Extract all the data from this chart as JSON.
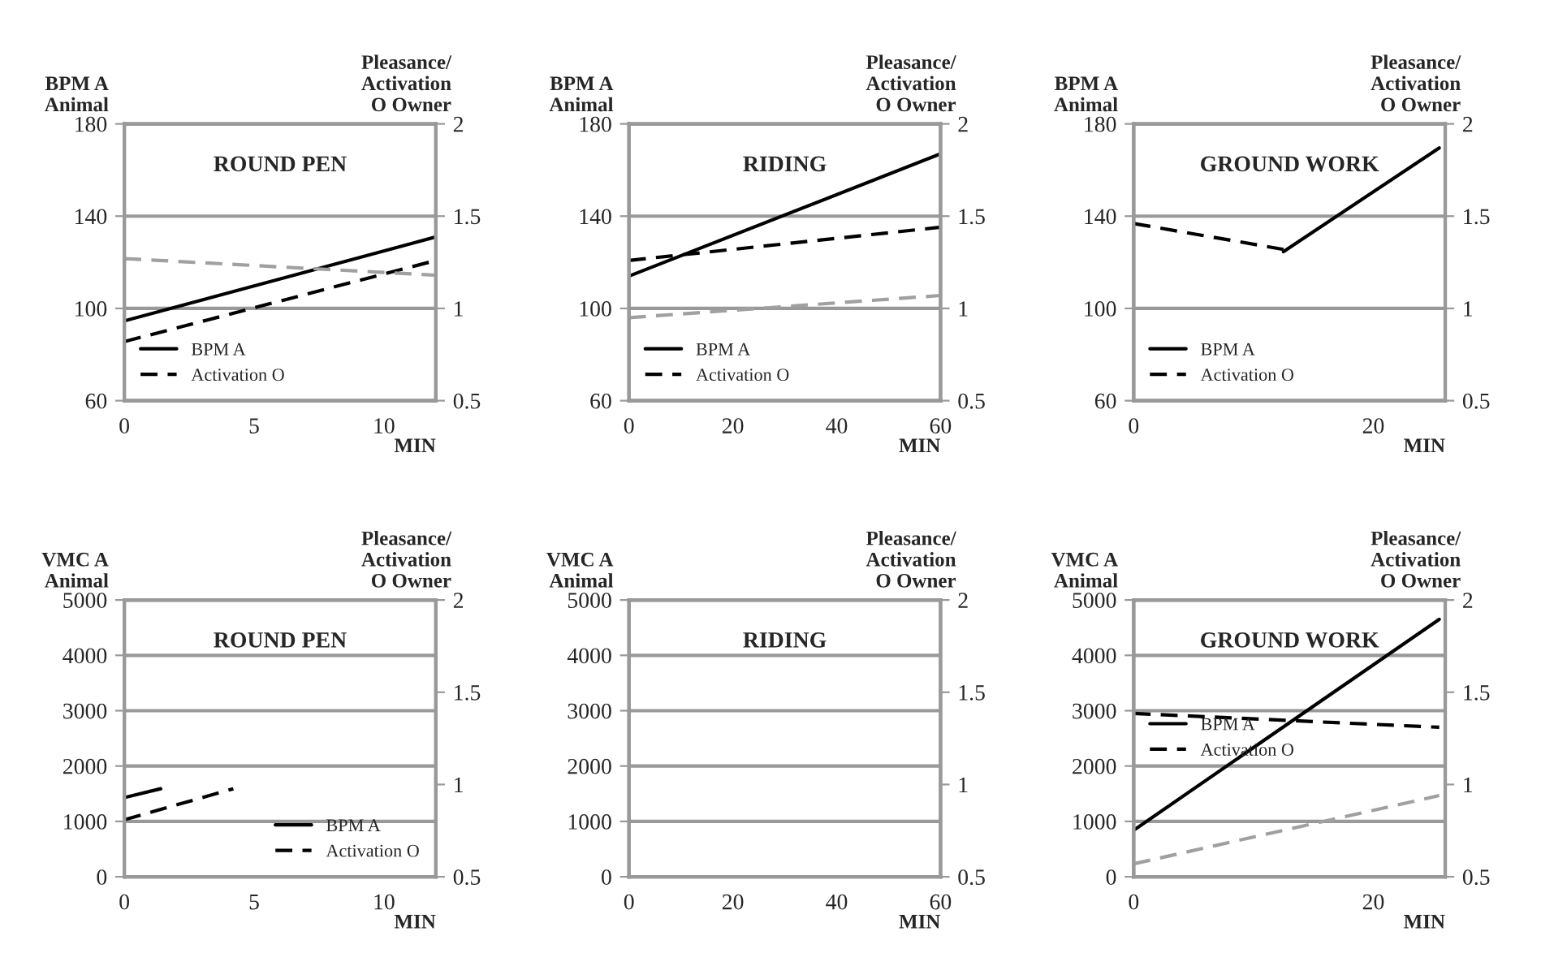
{
  "chart_data": [
    {
      "type": "line",
      "title": "ROUND PEN",
      "xlabel": "MIN",
      "ylabel": "BPM A\nAnimal",
      "y2label": "Pleasance/\nActivation\nO Owner",
      "xlim": [
        0,
        12
      ],
      "xticks": [
        0,
        5,
        10
      ],
      "ylim": [
        60,
        180
      ],
      "yticks": [
        60,
        100,
        140,
        180
      ],
      "y2lim": [
        0.5,
        2
      ],
      "y2ticks": [
        0.5,
        1,
        1.5,
        2
      ],
      "grid": "y",
      "legend": "bottom left",
      "series": [
        {
          "name": "BPM A",
          "color": "#000000",
          "line_style": "solid",
          "x": [
            0,
            12
          ],
          "values": [
            94.6,
            131
          ]
        },
        {
          "name": "Activation O",
          "color": "#000000",
          "line_style": "dashed",
          "axis": "y2",
          "x": [
            0,
            12
          ],
          "values": [
            0.82,
            1.26
          ]
        },
        {
          "color": "#a0a0a0",
          "line_style": "dashed",
          "axis": "y2",
          "x": [
            0,
            12
          ],
          "values": [
            1.27,
            1.18
          ]
        }
      ]
    },
    {
      "type": "line",
      "title": "RIDING",
      "xlabel": "MIN",
      "ylabel": "BPM A\nAnimal",
      "y2label": "Pleasance/\nActivation\nO Owner",
      "xlim": [
        0,
        60
      ],
      "xticks": [
        0,
        20,
        40,
        60
      ],
      "ylim": [
        60,
        180
      ],
      "yticks": [
        60,
        100,
        140,
        180
      ],
      "y2lim": [
        0.5,
        2
      ],
      "y2ticks": [
        0.5,
        1,
        1.5,
        2
      ],
      "grid": "y",
      "legend": "bottom left",
      "series": [
        {
          "name": "BPM A",
          "color": "#000000",
          "line_style": "solid",
          "x": [
            0,
            60
          ],
          "values": [
            114,
            167
          ]
        },
        {
          "name": "Activation O",
          "color": "#000000",
          "line_style": "dashed",
          "axis": "y2",
          "x": [
            0,
            60
          ],
          "values": [
            1.26,
            1.44
          ]
        },
        {
          "color": "#a0a0a0",
          "line_style": "dashed",
          "axis": "y2",
          "x": [
            0,
            60
          ],
          "values": [
            0.95,
            1.07
          ]
        }
      ]
    },
    {
      "type": "line",
      "title": "GROUND WORK",
      "xlabel": "MIN",
      "ylabel": "BPM A\nAnimal",
      "y2label": "Pleasance/\nActivation\nO Owner",
      "xlim": [
        0,
        26
      ],
      "xticks": [
        0,
        20
      ],
      "ylim": [
        60,
        180
      ],
      "yticks": [
        60,
        100,
        140,
        180
      ],
      "y2lim": [
        0.5,
        2
      ],
      "y2ticks": [
        0.5,
        1,
        1.5,
        2
      ],
      "grid": "y",
      "legend": "bottom left",
      "series": [
        {
          "name": "BPM A",
          "color": "#000000",
          "line_style": "solid",
          "x": [
            12.5,
            25.5
          ],
          "values": [
            124.6,
            169.6
          ]
        },
        {
          "name": "Activation O",
          "color": "#000000",
          "line_style": "dashed",
          "axis": "y2",
          "x": [
            0,
            12.5
          ],
          "values": [
            1.46,
            1.32
          ]
        }
      ]
    },
    {
      "type": "line",
      "title": "ROUND PEN",
      "xlabel": "MIN",
      "ylabel": "VMC A\nAnimal",
      "y2label": "Pleasance/\nActivation\nO Owner",
      "xlim": [
        0,
        12
      ],
      "xticks": [
        0,
        5,
        10
      ],
      "ylim": [
        0,
        5000
      ],
      "yticks": [
        0,
        1000,
        2000,
        3000,
        4000,
        5000
      ],
      "y2lim": [
        0.5,
        2
      ],
      "y2ticks": [
        0.5,
        1,
        1.5,
        2
      ],
      "grid": "y",
      "legend": "bottom right",
      "series": [
        {
          "name": "BPM A",
          "color": "#000000",
          "line_style": "solid",
          "x": [
            0,
            1.4
          ],
          "values": [
            1430,
            1590
          ]
        },
        {
          "name": "Activation O",
          "color": "#000000",
          "line_style": "dashed",
          "x": [
            0,
            4.2
          ],
          "values": [
            1030,
            1590
          ]
        }
      ]
    },
    {
      "type": "line",
      "title": "RIDING",
      "xlabel": "MIN",
      "ylabel": "VMC A\nAnimal",
      "y2label": "Pleasance/\nActivation\nO Owner",
      "xlim": [
        0,
        60
      ],
      "xticks": [
        0,
        20,
        40,
        60
      ],
      "ylim": [
        0,
        5000
      ],
      "yticks": [
        0,
        1000,
        2000,
        3000,
        4000,
        5000
      ],
      "y2lim": [
        0.5,
        2
      ],
      "y2ticks": [
        0.5,
        1,
        1.5,
        2
      ],
      "grid": "y"
    },
    {
      "type": "line",
      "title": "GROUND WORK",
      "xlabel": "MIN",
      "ylabel": "VMC A\nAnimal",
      "y2label": "Pleasance/\nActivation\nO Owner",
      "xlim": [
        0,
        26
      ],
      "xticks": [
        0,
        20
      ],
      "ylim": [
        0,
        5000
      ],
      "yticks": [
        0,
        1000,
        2000,
        3000,
        4000,
        5000
      ],
      "y2lim": [
        0.5,
        2
      ],
      "y2ticks": [
        0.5,
        1,
        1.5,
        2
      ],
      "grid": "y",
      "legend": "left",
      "series": [
        {
          "name": "BPM A",
          "color": "#000000",
          "line_style": "solid",
          "x": [
            0,
            25.5
          ],
          "values": [
            840,
            4650
          ]
        },
        {
          "name": "Activation O",
          "color": "#000000",
          "line_style": "dashed",
          "x": [
            0,
            25.5
          ],
          "values": [
            2950,
            2700
          ]
        },
        {
          "color": "#a0a0a0",
          "line_style": "dashed",
          "axis": "y2",
          "x": [
            0,
            25.5
          ],
          "values": [
            0.57,
            0.94
          ]
        }
      ]
    }
  ]
}
